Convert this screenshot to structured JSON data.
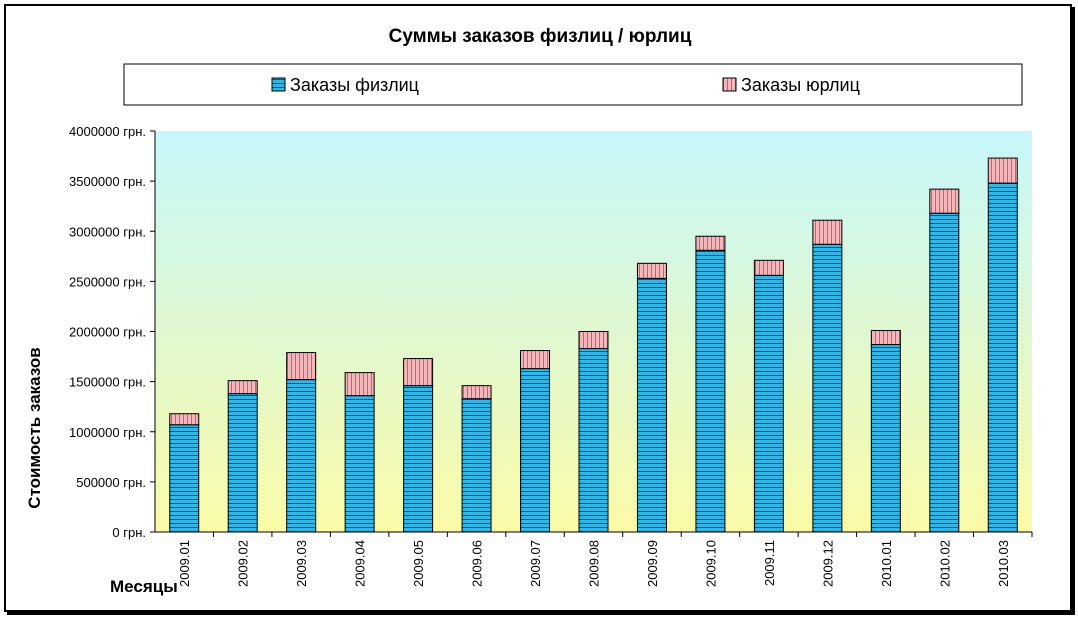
{
  "chart_data": {
    "type": "bar",
    "stacked": true,
    "title": "Суммы заказов физлиц / юрлиц",
    "xlabel": "Месяцы",
    "ylabel": "Стоимость заказов",
    "ylim": [
      0,
      4000000
    ],
    "yticks": [
      0,
      500000,
      1000000,
      1500000,
      2000000,
      2500000,
      3000000,
      3500000,
      4000000
    ],
    "ytick_suffix": " грн.",
    "categories": [
      "2009.01",
      "2009.02",
      "2009.03",
      "2009.04",
      "2009.05",
      "2009.06",
      "2009.07",
      "2009.08",
      "2009.09",
      "2009.10",
      "2009.11",
      "2009.12",
      "2010.01",
      "2010.02",
      "2010.03"
    ],
    "series": [
      {
        "name": "Заказы физлиц",
        "color": "#33b5e5",
        "values": [
          1070000,
          1380000,
          1520000,
          1360000,
          1460000,
          1330000,
          1630000,
          1830000,
          2530000,
          2810000,
          2560000,
          2870000,
          1870000,
          3180000,
          3480000
        ]
      },
      {
        "name": "Заказы юрлиц",
        "color": "#f4b6bb",
        "values": [
          110000,
          130000,
          270000,
          230000,
          270000,
          130000,
          180000,
          170000,
          150000,
          140000,
          150000,
          240000,
          140000,
          240000,
          250000
        ]
      }
    ],
    "legend_position": "top",
    "grid": false,
    "plot_background": [
      "#c6f7fb",
      "#fafaa7"
    ]
  }
}
